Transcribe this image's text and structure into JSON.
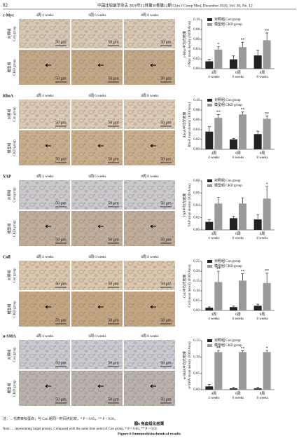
{
  "header": {
    "page_number": "82",
    "journal": "中国比较医学杂志 2020年12月第30卷第12期  Chin J Comp Med, December 2020, Vol. 30, No. 12"
  },
  "panels": [
    "c-Myc",
    "RhoA",
    "YAP",
    "Coll",
    "α-SMA"
  ],
  "column_headers": [
    "4周  4 weeks",
    "6周  6 weeks",
    "8周  8 weeks"
  ],
  "row_labels": [
    {
      "zh": "对照组",
      "en": "Con group"
    },
    {
      "zh": "模型组",
      "en": "CKD group"
    }
  ],
  "scale_bar": "50 μm",
  "chart_data": [
    {
      "type": "bar",
      "ylabel": "c-Myc平均光密度",
      "ylabel_en": "c-Myc mean density (IOD/Area)",
      "categories": [
        "4周",
        "6周",
        "8周"
      ],
      "categories_en": [
        "4 weeks",
        "6 weeks",
        "8 weeks"
      ],
      "ylim": [
        0,
        0.1
      ],
      "yticks": [
        {
          "value": 0,
          "label": "0.00"
        },
        {
          "value": 0.02,
          "label": "0.02"
        },
        {
          "value": 0.04,
          "label": "0.04"
        },
        {
          "value": 0.06,
          "label": "0.06"
        },
        {
          "value": 0.08,
          "label": "0.08"
        },
        {
          "value": 0.1,
          "label": "0.10"
        }
      ],
      "series": [
        {
          "name": "对照组 Con group",
          "color": "#222222",
          "values": [
            0.015,
            0.019,
            0.027
          ],
          "errors": [
            0.004,
            0.007,
            0.01
          ]
        },
        {
          "name": "模型组 CKD group",
          "color": "#9a9a9a",
          "values": [
            0.039,
            0.044,
            0.058
          ],
          "errors": [
            0.006,
            0.01,
            0.015
          ],
          "significance": [
            "*",
            "**",
            "**"
          ]
        }
      ]
    },
    {
      "type": "bar",
      "ylabel": "RhoA平均光密度",
      "ylabel_en": "RhoA mean density (IOD/Area)",
      "categories": [
        "4周",
        "6周",
        "8周"
      ],
      "categories_en": [
        "4 weeks",
        "6 weeks",
        "8 weeks"
      ],
      "ylim": [
        0,
        0.1
      ],
      "yticks": [
        {
          "value": 0,
          "label": "0.00"
        },
        {
          "value": 0.02,
          "label": "0.02"
        },
        {
          "value": 0.04,
          "label": "0.04"
        },
        {
          "value": 0.06,
          "label": "0.06"
        },
        {
          "value": 0.08,
          "label": "0.08"
        },
        {
          "value": 0.1,
          "label": "0.10"
        }
      ],
      "series": [
        {
          "name": "对照组 Con group",
          "color": "#222222",
          "values": [
            0.036,
            0.02,
            0.031
          ],
          "errors": [
            0.01,
            0.002,
            0.006
          ]
        },
        {
          "name": "模型组 CKD group",
          "color": "#9a9a9a",
          "values": [
            0.064,
            0.071,
            0.062
          ],
          "errors": [
            0.007,
            0.005,
            0.006
          ],
          "significance": [
            "**",
            "**",
            "**"
          ]
        }
      ]
    },
    {
      "type": "bar",
      "ylabel": "YAP平均光密度",
      "ylabel_en": "YAP mean density (IOD/Area)",
      "categories": [
        "4周",
        "6周",
        "8周"
      ],
      "categories_en": [
        "4 weeks",
        "6 weeks",
        "8 weeks"
      ],
      "ylim": [
        0,
        0.08
      ],
      "yticks": [
        {
          "value": 0,
          "label": "0.00"
        },
        {
          "value": 0.02,
          "label": "0.02"
        },
        {
          "value": 0.04,
          "label": "0.04"
        },
        {
          "value": 0.06,
          "label": "0.06"
        },
        {
          "value": 0.08,
          "label": "0.08"
        }
      ],
      "series": [
        {
          "name": "对照组 Con group",
          "color": "#222222",
          "values": [
            0.013,
            0.019,
            0.017
          ],
          "errors": [
            0.004,
            0.003,
            0.008
          ]
        },
        {
          "name": "模型组 CKD group",
          "color": "#9a9a9a",
          "values": [
            0.043,
            0.043,
            0.051
          ],
          "errors": [
            0.01,
            0.009,
            0.02
          ],
          "significance": [
            null,
            null,
            "*"
          ]
        }
      ]
    },
    {
      "type": "bar",
      "ylabel": "Coll平均光密度",
      "ylabel_en": "Coll mean density (IOD/Area)",
      "categories": [
        "4周",
        "6周",
        "8周"
      ],
      "categories_en": [
        "4 weeks",
        "6 weeks",
        "8 weeks"
      ],
      "ylim": [
        0,
        0.25
      ],
      "yticks": [
        {
          "value": 0,
          "label": "0.00"
        },
        {
          "value": 0.05,
          "label": "0.05"
        },
        {
          "value": 0.1,
          "label": "0.10"
        },
        {
          "value": 0.15,
          "label": "0.15"
        },
        {
          "value": 0.2,
          "label": "0.20"
        },
        {
          "value": 0.25,
          "label": "0.25"
        }
      ],
      "series": [
        {
          "name": "对照组 Con group",
          "color": "#222222",
          "values": [
            0.014,
            0.017,
            0.024
          ],
          "errors": [
            0.004,
            0.005,
            0.008
          ]
        },
        {
          "name": "模型组 CKD group",
          "color": "#9a9a9a",
          "values": [
            0.145,
            0.152,
            0.14
          ],
          "errors": [
            0.055,
            0.035,
            0.05
          ],
          "significance": [
            "**",
            "**",
            "**"
          ]
        }
      ]
    },
    {
      "type": "bar",
      "ylabel": "α-SMA平均光密度",
      "ylabel_en": "α-SMA mean density (IOD/Area)",
      "categories": [
        "4周",
        "6周",
        "8周"
      ],
      "categories_en": [
        "4 weeks",
        "6 weeks",
        "8 weeks"
      ],
      "ylim": [
        0,
        0.15
      ],
      "yticks": [
        {
          "value": 0,
          "label": "0.00"
        },
        {
          "value": 0.05,
          "label": "0.05"
        },
        {
          "value": 0.1,
          "label": "0.10"
        },
        {
          "value": 0.15,
          "label": "0.15"
        }
      ],
      "series": [
        {
          "name": "对照组 Con group",
          "color": "#222222",
          "values": [
            0.01,
            0.004,
            0.004
          ],
          "errors": [
            0.006,
            0.003,
            0.004
          ]
        },
        {
          "name": "模型组 CKD group",
          "color": "#9a9a9a",
          "values": [
            0.115,
            0.115,
            0.115
          ],
          "errors": [
            0.005,
            0.004,
            0.005
          ],
          "significance": [
            "**",
            "**",
            "*"
          ]
        }
      ]
    }
  ],
  "caption": {
    "note_zh": "注：←代表目标蛋白；与 Con 组同一时间点比较，* P < 0.05，** P < 0.01。",
    "title_zh": "图6  免疫组化结果",
    "note_en": "Note. ←representing target protein. Compared with the same time point of Con group, * P < 0.05, ** P < 0.01.",
    "title_en": "Figure 6  Immunohistochemical results"
  }
}
